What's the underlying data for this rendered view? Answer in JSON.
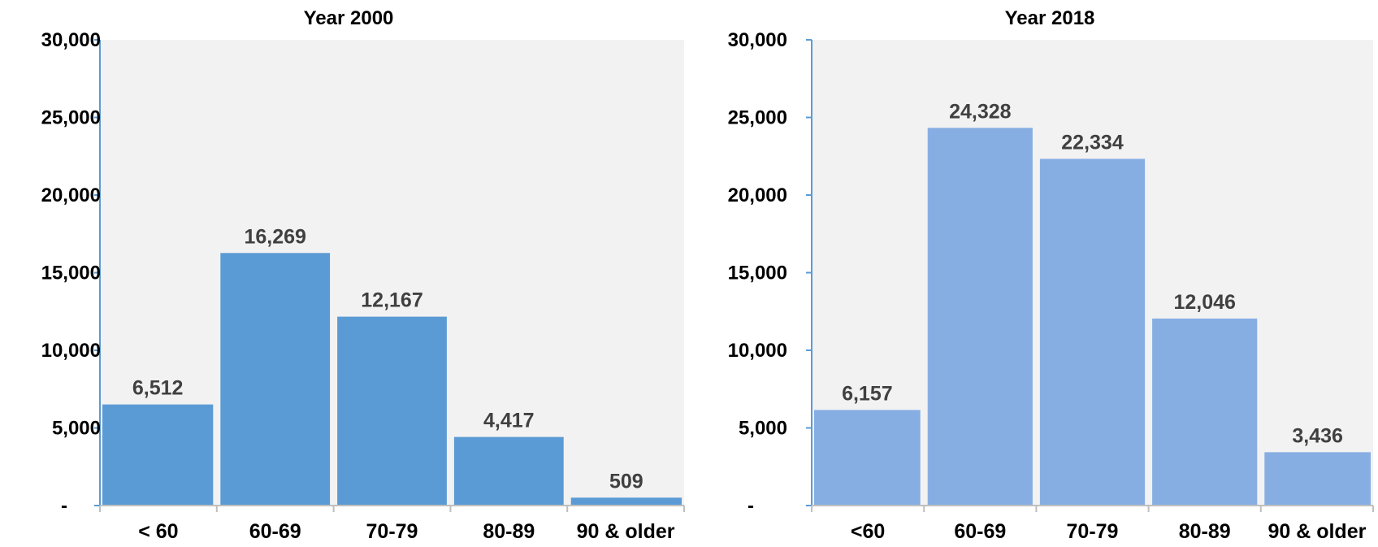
{
  "colors": {
    "plot_bg": "#f2f2f2",
    "axis": "#5b9bd5",
    "tick": "#bfbfbf",
    "series_2000": "#5b9bd5",
    "series_2018": "#86aee3",
    "label": "#404040"
  },
  "chart_data": [
    {
      "type": "bar",
      "title": "Year 2000",
      "categories": [
        "< 60",
        "60-69",
        "70-79",
        "80-89",
        "90 & older"
      ],
      "values": [
        6512,
        16269,
        12167,
        4417,
        509
      ],
      "value_labels": [
        "6,512",
        "16,269",
        "12,167",
        "4,417",
        "509"
      ],
      "ylim": [
        0,
        30000
      ],
      "yticks": [
        0,
        5000,
        10000,
        15000,
        20000,
        25000,
        30000
      ],
      "ytick_labels": [
        "-",
        "5,000",
        "10,000",
        "15,000",
        "20,000",
        "25,000",
        "30,000"
      ],
      "xlabel": "",
      "ylabel": "",
      "grid": false,
      "legend": "none"
    },
    {
      "type": "bar",
      "title": "Year 2018",
      "categories": [
        "<60",
        "60-69",
        "70-79",
        "80-89",
        "90 & older"
      ],
      "values": [
        6157,
        24328,
        22334,
        12046,
        3436
      ],
      "value_labels": [
        "6,157",
        "24,328",
        "22,334",
        "12,046",
        "3,436"
      ],
      "ylim": [
        0,
        30000
      ],
      "yticks": [
        0,
        5000,
        10000,
        15000,
        20000,
        25000,
        30000
      ],
      "ytick_labels": [
        "-",
        "5,000",
        "10,000",
        "15,000",
        "20,000",
        "25,000",
        "30,000"
      ],
      "xlabel": "",
      "ylabel": "",
      "grid": false,
      "legend": "none"
    }
  ]
}
